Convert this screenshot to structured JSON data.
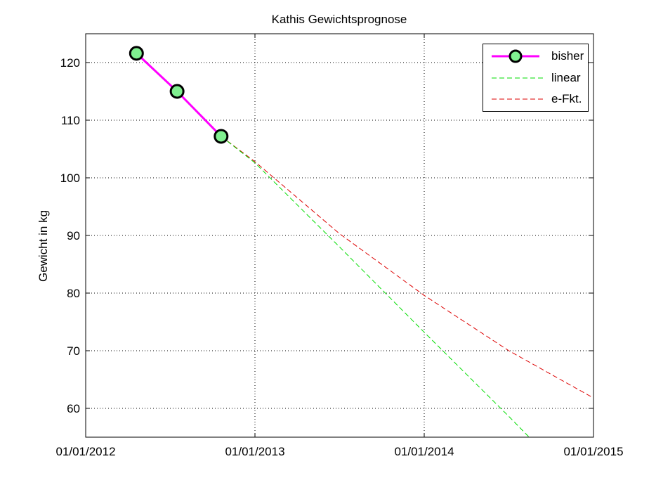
{
  "chart_data": {
    "type": "line",
    "title": "Kathis Gewichtsprognose",
    "xlabel": "",
    "ylabel": "Gewicht in kg",
    "xlim": [
      "01/01/2012",
      "01/01/2015"
    ],
    "ylim": [
      55,
      125
    ],
    "grid": true,
    "legend_position": "upper right",
    "x_ticks": [
      "01/01/2012",
      "01/01/2013",
      "01/01/2014",
      "01/01/2015"
    ],
    "y_ticks": [
      60,
      70,
      80,
      90,
      100,
      110,
      120
    ],
    "series": [
      {
        "name": "bisher",
        "style": "solid magenta, green circle markers",
        "x": [
          2012.3,
          2012.54,
          2012.8
        ],
        "values": [
          121.6,
          115.0,
          107.2
        ]
      },
      {
        "name": "linear",
        "style": "dashed green",
        "x": [
          2012.8,
          2013.0,
          2013.5,
          2014.0,
          2014.5,
          2014.62
        ],
        "values": [
          107.2,
          102.6,
          88.0,
          73.2,
          58.6,
          55.0
        ]
      },
      {
        "name": "e-Fkt.",
        "style": "dashed red",
        "x": [
          2012.8,
          2013.0,
          2013.5,
          2014.0,
          2014.5,
          2015.0
        ],
        "values": [
          107.2,
          102.8,
          90.3,
          79.6,
          70.0,
          61.8
        ]
      }
    ]
  },
  "colors": {
    "bisher": "#ff00ff",
    "marker": "#80f090",
    "linear": "#00dd00",
    "efkt": "#dd0000"
  },
  "legend": {
    "bisher": "bisher",
    "linear": "linear",
    "efkt": "e-Fkt."
  }
}
